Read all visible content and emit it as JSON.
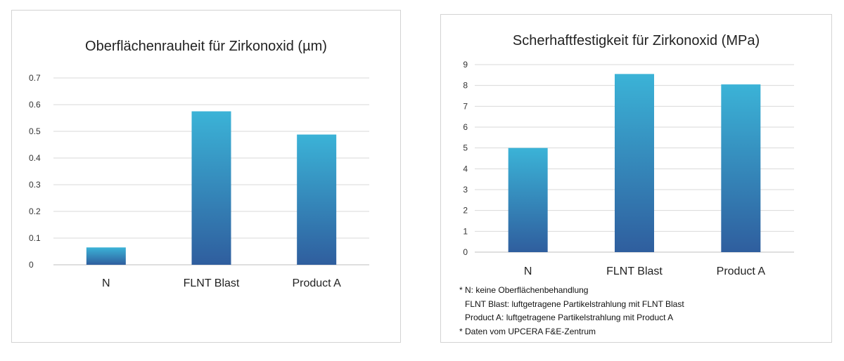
{
  "colors": {
    "bar_top": "#3BB3D7",
    "bar_bottom": "#2F5E9E",
    "grid": "#d9d9d9",
    "axis": "#bfbfbf"
  },
  "chart_data": [
    {
      "type": "bar",
      "title": "Oberflächenrauheit für Zirkonoxid (µm)",
      "categories": [
        "N",
        "FLNT Blast",
        "Product A"
      ],
      "values": [
        0.065,
        0.575,
        0.488
      ],
      "ylim": [
        0,
        0.7
      ],
      "yticks": [
        "0",
        "0.1",
        "0.2",
        "0.3",
        "0.4",
        "0.5",
        "0.6",
        "0.7"
      ],
      "grid": true,
      "xlabel": "",
      "ylabel": ""
    },
    {
      "type": "bar",
      "title": "Scherhaftfestigkeit für Zirkonoxid (MPa)",
      "categories": [
        "N",
        "FLNT Blast",
        "Product A"
      ],
      "values": [
        5.0,
        8.55,
        8.05
      ],
      "ylim": [
        0,
        9
      ],
      "yticks": [
        "0",
        "1",
        "2",
        "3",
        "4",
        "5",
        "6",
        "7",
        "8",
        "9"
      ],
      "grid": true,
      "xlabel": "",
      "ylabel": ""
    }
  ],
  "notes": [
    "* N: keine Oberflächenbehandlung",
    "FLNT Blast: luftgetragene Partikelstrahlung mit FLNT Blast",
    "Product A: luftgetragene Partikelstrahlung mit Product A",
    "* Daten vom UPCERA F&E-Zentrum"
  ]
}
